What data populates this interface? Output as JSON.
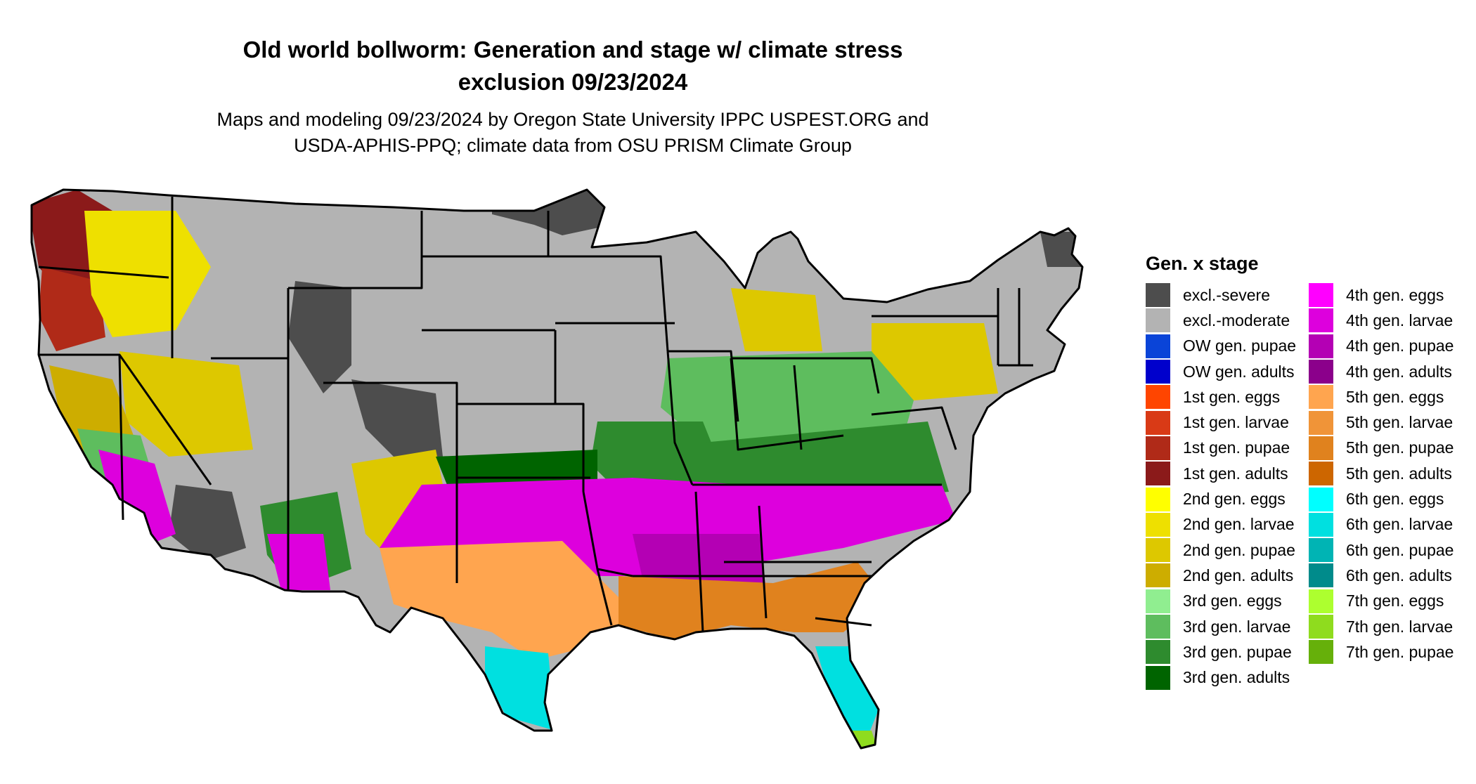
{
  "title": {
    "line1": "Old world bollworm: Generation and stage w/ climate stress",
    "line2": "exclusion 09/23/2024"
  },
  "subtitle": {
    "line1": "Maps and modeling 09/23/2024 by Oregon State University IPPC USPEST.ORG and",
    "line2": "USDA-APHIS-PPQ; climate data from OSU PRISM Climate Group"
  },
  "legend": {
    "title": "Gen. x stage",
    "column1": [
      {
        "label": "excl.-severe",
        "color": "#4d4d4d"
      },
      {
        "label": "excl.-moderate",
        "color": "#b3b3b3"
      },
      {
        "label": "OW gen. pupae",
        "color": "#0a44d8"
      },
      {
        "label": "OW gen. adults",
        "color": "#0000cc"
      },
      {
        "label": "1st gen. eggs",
        "color": "#ff4500"
      },
      {
        "label": "1st gen. larvae",
        "color": "#d93a16"
      },
      {
        "label": "1st gen. pupae",
        "color": "#b02a18"
      },
      {
        "label": "1st gen. adults",
        "color": "#8b1a1a"
      },
      {
        "label": "2nd gen. eggs",
        "color": "#ffff00"
      },
      {
        "label": "2nd gen. larvae",
        "color": "#eee000"
      },
      {
        "label": "2nd gen. pupae",
        "color": "#ddc800"
      },
      {
        "label": "2nd gen. adults",
        "color": "#cdad00"
      },
      {
        "label": "3rd gen. eggs",
        "color": "#90ee90"
      },
      {
        "label": "3rd gen. larvae",
        "color": "#5ebd5e"
      },
      {
        "label": "3rd gen. pupae",
        "color": "#2e8b2e"
      },
      {
        "label": "3rd gen. adults",
        "color": "#006400"
      }
    ],
    "column2": [
      {
        "label": "4th gen. eggs",
        "color": "#ff00ff"
      },
      {
        "label": "4th gen. larvae",
        "color": "#dd00dd"
      },
      {
        "label": "4th gen. pupae",
        "color": "#b400b4"
      },
      {
        "label": "4th gen. adults",
        "color": "#8b008b"
      },
      {
        "label": "5th gen. eggs",
        "color": "#ffa54f"
      },
      {
        "label": "5th gen. larvae",
        "color": "#f09438"
      },
      {
        "label": "5th gen. pupae",
        "color": "#e0821e"
      },
      {
        "label": "5th gen. adults",
        "color": "#cd6600"
      },
      {
        "label": "6th gen. eggs",
        "color": "#00ffff"
      },
      {
        "label": "6th gen. larvae",
        "color": "#00e0e0"
      },
      {
        "label": "6th gen. pupae",
        "color": "#00b4b4"
      },
      {
        "label": "6th gen. adults",
        "color": "#008b8b"
      },
      {
        "label": "7th gen. eggs",
        "color": "#adff2f"
      },
      {
        "label": "7th gen. larvae",
        "color": "#8fdc1e"
      },
      {
        "label": "7th gen. pupae",
        "color": "#66b00a"
      }
    ]
  }
}
